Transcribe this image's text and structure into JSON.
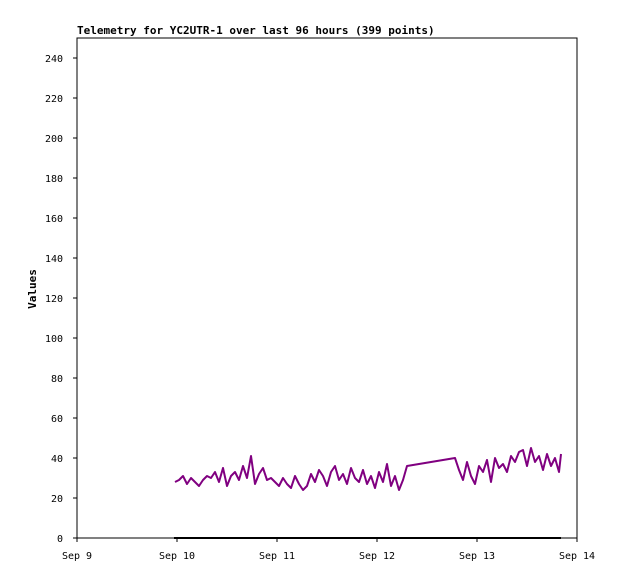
{
  "chart_data": {
    "type": "line",
    "title": "Telemetry for YC2UTR-1 over last 96 hours (399 points)",
    "xlabel": "",
    "ylabel": "Values",
    "x_ticks": [
      "Sep 9",
      "Sep 10",
      "Sep 11",
      "Sep 12",
      "Sep 13",
      "Sep 14"
    ],
    "y_ticks": [
      0,
      20,
      40,
      60,
      80,
      100,
      120,
      140,
      160,
      180,
      200,
      220,
      240
    ],
    "xlim": [
      "Sep 9 00:00",
      "Sep 14 00:00"
    ],
    "ylim": [
      0,
      250
    ],
    "grid": false,
    "colors": {
      "series": "#800080",
      "baseline": "#000000",
      "axis": "#000000"
    },
    "series": [
      {
        "x_days_from_sep9": [
          0.98,
          1.02,
          1.06,
          1.1,
          1.14,
          1.18,
          1.22,
          1.26,
          1.3,
          1.34,
          1.38,
          1.42,
          1.46,
          1.5,
          1.54,
          1.58,
          1.62,
          1.66,
          1.7,
          1.74,
          1.78,
          1.82,
          1.86,
          1.9,
          1.94,
          1.98,
          2.02,
          2.06,
          2.1,
          2.14,
          2.18,
          2.22,
          2.26,
          2.3,
          2.34,
          2.38,
          2.42,
          2.46,
          2.5,
          2.54,
          2.58,
          2.62,
          2.66,
          2.7,
          2.74,
          2.78,
          2.82,
          2.86,
          2.9,
          2.94,
          2.98,
          3.02,
          3.06,
          3.1,
          3.14,
          3.18,
          3.22,
          3.26,
          3.3,
          3.78,
          3.82,
          3.86,
          3.9,
          3.94,
          3.98,
          4.02,
          4.06,
          4.1,
          4.14,
          4.18,
          4.22,
          4.26,
          4.3,
          4.34,
          4.38,
          4.42,
          4.46,
          4.5,
          4.54,
          4.58,
          4.62,
          4.66,
          4.7,
          4.74,
          4.78,
          4.82,
          4.84
        ],
        "values": [
          28,
          29,
          31,
          27,
          30,
          28,
          26,
          29,
          31,
          30,
          33,
          28,
          35,
          26,
          31,
          33,
          29,
          36,
          30,
          41,
          27,
          32,
          35,
          29,
          30,
          28,
          26,
          30,
          27,
          25,
          31,
          27,
          24,
          26,
          32,
          28,
          34,
          31,
          26,
          33,
          36,
          29,
          32,
          27,
          35,
          30,
          28,
          34,
          27,
          31,
          25,
          33,
          28,
          37,
          26,
          31,
          24,
          29,
          36,
          40,
          34,
          29,
          38,
          31,
          27,
          36,
          33,
          39,
          28,
          40,
          35,
          37,
          33,
          41,
          38,
          43,
          44,
          36,
          45,
          38,
          41,
          34,
          42,
          36,
          40,
          33,
          42
        ]
      },
      {
        "name": "",
        "values": [
          0,
          0
        ],
        "x_days_from_sep9": [
          0.97,
          4.84
        ],
        "note_color": "baseline"
      }
    ]
  }
}
